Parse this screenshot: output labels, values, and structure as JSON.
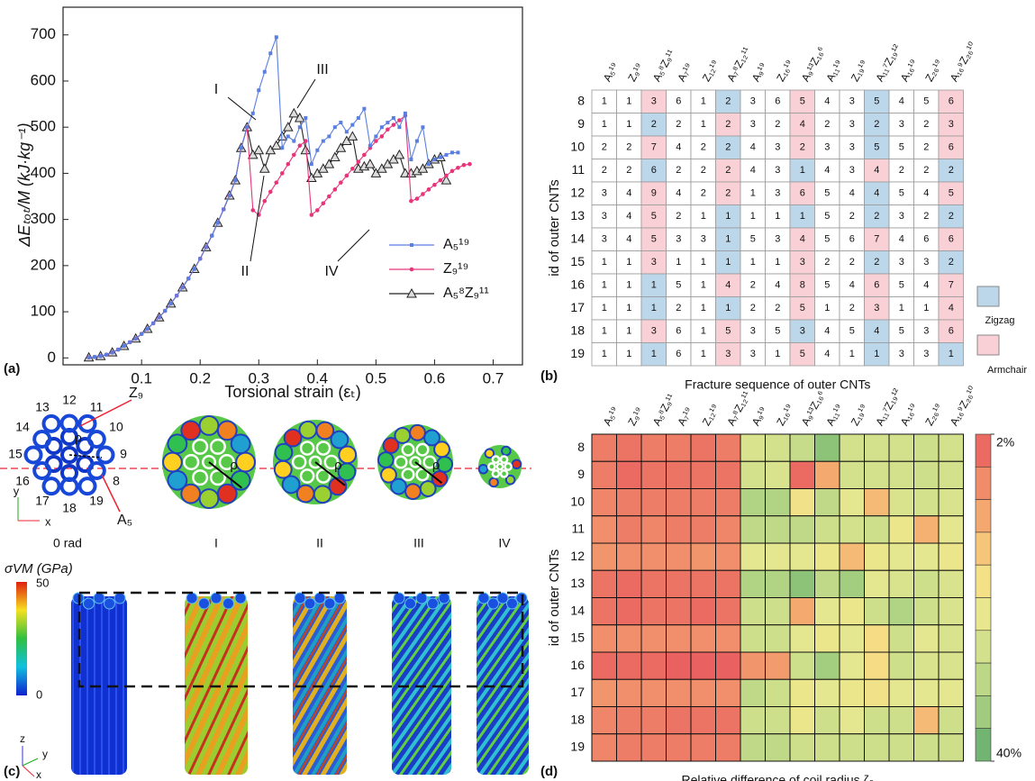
{
  "chart_data": [
    {
      "type": "line",
      "label": "(a)",
      "xlabel": "Torsional strain (εₜ)",
      "ylabel": "ΔEₜₒₜ/M (kJ·kg⁻¹)",
      "xlim": [
        -0.034,
        0.75
      ],
      "ylim": [
        -15,
        760
      ],
      "xticks": [
        0.1,
        0.2,
        0.3,
        0.4,
        0.5,
        0.6,
        0.7
      ],
      "yticks": [
        0,
        100,
        200,
        300,
        400,
        500,
        600,
        700
      ],
      "legend": "lower right",
      "annotations": [
        "I",
        "II",
        "III",
        "IV"
      ],
      "x": [
        0.01,
        0.02,
        0.03,
        0.04,
        0.05,
        0.06,
        0.07,
        0.08,
        0.09,
        0.1,
        0.11,
        0.12,
        0.13,
        0.14,
        0.15,
        0.16,
        0.17,
        0.18,
        0.19,
        0.2,
        0.21,
        0.22,
        0.23,
        0.24,
        0.25,
        0.26,
        0.27,
        0.28,
        0.29,
        0.3,
        0.31,
        0.32,
        0.33,
        0.34,
        0.35,
        0.36,
        0.37,
        0.38,
        0.39,
        0.4,
        0.41,
        0.42,
        0.43,
        0.44,
        0.45,
        0.46,
        0.47,
        0.48,
        0.49,
        0.5,
        0.51,
        0.52,
        0.53,
        0.54,
        0.55,
        0.56,
        0.57,
        0.58,
        0.59,
        0.6,
        0.61,
        0.62,
        0.63,
        0.64,
        0.65,
        0.66
      ],
      "series": [
        {
          "name": "A₅¹⁹",
          "color": "#5b7fe0",
          "marker": "square",
          "values": [
            1,
            2,
            4,
            7,
            12,
            18,
            26,
            34,
            42,
            52,
            63,
            75,
            88,
            102,
            118,
            135,
            153,
            172,
            193,
            215,
            240,
            265,
            293,
            322,
            352,
            385,
            455,
            500,
            530,
            580,
            620,
            660,
            695,
            455,
            480,
            470,
            500,
            520,
            420,
            450,
            470,
            480,
            500,
            510,
            490,
            505,
            520,
            540,
            460,
            480,
            500,
            510,
            520,
            500,
            530,
            430,
            470,
            500,
            420,
            430,
            435,
            440,
            445,
            445,
            null,
            null
          ]
        },
        {
          "name": "Z₉¹⁹",
          "color": "#e8347a",
          "marker": "circle",
          "values": [
            1,
            2,
            4,
            7,
            12,
            18,
            26,
            34,
            42,
            52,
            63,
            75,
            88,
            102,
            118,
            135,
            153,
            172,
            193,
            215,
            240,
            265,
            293,
            322,
            352,
            385,
            455,
            500,
            320,
            310,
            340,
            360,
            380,
            400,
            420,
            440,
            460,
            470,
            310,
            320,
            335,
            350,
            365,
            380,
            395,
            410,
            425,
            440,
            455,
            470,
            480,
            495,
            505,
            515,
            525,
            340,
            345,
            355,
            365,
            375,
            385,
            395,
            405,
            412,
            418,
            420
          ]
        },
        {
          "name": "A₅⁸Z₉¹¹",
          "color": "#222222",
          "marker": "triangle",
          "values": [
            1,
            2,
            4,
            7,
            12,
            18,
            26,
            34,
            42,
            52,
            63,
            75,
            88,
            102,
            118,
            135,
            153,
            172,
            193,
            215,
            240,
            265,
            293,
            322,
            352,
            385,
            455,
            500,
            440,
            450,
            410,
            450,
            460,
            480,
            500,
            530,
            520,
            450,
            390,
            400,
            410,
            420,
            435,
            455,
            470,
            480,
            410,
            415,
            420,
            400,
            410,
            420,
            430,
            440,
            400,
            400,
            405,
            410,
            420,
            430,
            435,
            385,
            null,
            null,
            null,
            null
          ]
        }
      ]
    },
    {
      "type": "table",
      "label": "(b)",
      "xlabel": "Fracture sequence of outer CNTs",
      "ylabel": "id of outer CNTs",
      "columns": [
        "A₅¹⁹",
        "Z₉¹⁹",
        "A₅⁸Z₉¹¹",
        "A₇¹⁹",
        "Z₁₂¹⁹",
        "A₇⁸Z₁₂¹¹",
        "A₉¹⁹",
        "Z₁₆¹⁹",
        "A₉¹³Z₁₆⁶",
        "A₁₁¹⁹",
        "Z₁₉¹⁹",
        "A₁₁⁷Z₁₉¹²",
        "A₁₆¹⁹",
        "Z₂₆¹⁹",
        "A₁₆⁹Z₂₆¹⁰"
      ],
      "rows": [
        8,
        9,
        10,
        11,
        12,
        13,
        14,
        15,
        16,
        17,
        18,
        19
      ],
      "legend_items": [
        {
          "name": "Zigzag",
          "color": "#bcd6ea"
        },
        {
          "name": "Armchair",
          "color": "#f9d0d5"
        }
      ],
      "values": [
        [
          1,
          1,
          3,
          6,
          1,
          2,
          3,
          6,
          5,
          4,
          3,
          5,
          4,
          5,
          6
        ],
        [
          1,
          1,
          2,
          2,
          1,
          2,
          3,
          2,
          4,
          2,
          3,
          2,
          3,
          2,
          3
        ],
        [
          2,
          2,
          7,
          4,
          2,
          2,
          4,
          3,
          2,
          3,
          3,
          5,
          5,
          2,
          6
        ],
        [
          2,
          2,
          6,
          2,
          2,
          2,
          4,
          3,
          1,
          4,
          3,
          4,
          2,
          2,
          2
        ],
        [
          3,
          4,
          9,
          4,
          2,
          2,
          1,
          3,
          6,
          5,
          4,
          4,
          5,
          4,
          5
        ],
        [
          3,
          4,
          5,
          2,
          1,
          1,
          1,
          1,
          1,
          5,
          2,
          2,
          3,
          2,
          2
        ],
        [
          3,
          4,
          5,
          3,
          3,
          1,
          5,
          3,
          4,
          5,
          6,
          7,
          4,
          6,
          6
        ],
        [
          1,
          1,
          3,
          1,
          1,
          1,
          1,
          1,
          3,
          2,
          2,
          2,
          3,
          3,
          2
        ],
        [
          1,
          1,
          1,
          5,
          1,
          4,
          2,
          4,
          8,
          5,
          4,
          6,
          5,
          4,
          7
        ],
        [
          1,
          1,
          1,
          2,
          1,
          1,
          2,
          2,
          5,
          1,
          2,
          3,
          1,
          1,
          4
        ],
        [
          1,
          1,
          3,
          6,
          1,
          5,
          3,
          5,
          3,
          4,
          5,
          4,
          5,
          3,
          6
        ],
        [
          1,
          1,
          1,
          6,
          1,
          3,
          3,
          1,
          5,
          4,
          1,
          1,
          3,
          3,
          1
        ]
      ],
      "cell_types": [
        [
          null,
          null,
          1,
          null,
          null,
          0,
          null,
          null,
          1,
          null,
          null,
          0,
          null,
          null,
          1
        ],
        [
          null,
          null,
          0,
          null,
          null,
          1,
          null,
          null,
          1,
          null,
          null,
          0,
          null,
          null,
          1
        ],
        [
          null,
          null,
          1,
          null,
          null,
          0,
          null,
          null,
          1,
          null,
          null,
          0,
          null,
          null,
          1
        ],
        [
          null,
          null,
          0,
          null,
          null,
          1,
          null,
          null,
          0,
          null,
          null,
          1,
          null,
          null,
          0
        ],
        [
          null,
          null,
          1,
          null,
          null,
          1,
          null,
          null,
          1,
          null,
          null,
          0,
          null,
          null,
          1
        ],
        [
          null,
          null,
          1,
          null,
          null,
          0,
          null,
          null,
          0,
          null,
          null,
          0,
          null,
          null,
          0
        ],
        [
          null,
          null,
          1,
          null,
          null,
          0,
          null,
          null,
          1,
          null,
          null,
          1,
          null,
          null,
          1
        ],
        [
          null,
          null,
          1,
          null,
          null,
          0,
          null,
          null,
          1,
          null,
          null,
          0,
          null,
          null,
          0
        ],
        [
          null,
          null,
          0,
          null,
          null,
          1,
          null,
          null,
          1,
          null,
          null,
          1,
          null,
          null,
          1
        ],
        [
          null,
          null,
          0,
          null,
          null,
          0,
          null,
          null,
          1,
          null,
          null,
          1,
          null,
          null,
          1
        ],
        [
          null,
          null,
          1,
          null,
          null,
          1,
          null,
          null,
          0,
          null,
          null,
          0,
          null,
          null,
          1
        ],
        [
          null,
          null,
          0,
          null,
          null,
          1,
          null,
          null,
          1,
          null,
          null,
          0,
          null,
          null,
          0
        ]
      ]
    },
    {
      "type": "heatmap",
      "label": "(d)",
      "xlabel": "Relative difference of coil radius ζᵨ",
      "ylabel": "id of outer CNTs",
      "columns": [
        "A₅¹⁹",
        "Z₉¹⁹",
        "A₅⁸Z₉¹¹",
        "A₇¹⁹",
        "Z₁₂¹⁹",
        "A₇⁸Z₁₂¹¹",
        "A₉¹⁹",
        "Z₁₆¹⁹",
        "A₉¹³Z₁₆⁶",
        "A₁₁¹⁹",
        "Z₁₉¹⁹",
        "A₁₁⁷Z₁₉¹²",
        "A₁₆¹⁹",
        "Z₂₆¹⁹",
        "A₁₆⁹Z₂₆¹⁰"
      ],
      "rows": [
        8,
        9,
        10,
        11,
        12,
        13,
        14,
        15,
        16,
        17,
        18,
        19
      ],
      "zlim": [
        2,
        40
      ],
      "colorbar_ticks": [
        {
          "value": 2,
          "label": "2%"
        },
        {
          "value": 40,
          "label": "40%"
        }
      ],
      "colormap": [
        "#e8585e",
        "#f08a6a",
        "#f5b070",
        "#f6df86",
        "#e6e88f",
        "#c6dc8a",
        "#9fcb7e",
        "#5aa86a"
      ],
      "values": [
        [
          6,
          5,
          6,
          6,
          5,
          6,
          26,
          27,
          29,
          36,
          27,
          27,
          27,
          28,
          27
        ],
        [
          6,
          4,
          5,
          5,
          5,
          5,
          27,
          26,
          4,
          12,
          27,
          27,
          27,
          28,
          27
        ],
        [
          7,
          6,
          6,
          6,
          6,
          6,
          32,
          32,
          20,
          30,
          24,
          14,
          26,
          27,
          26
        ],
        [
          8,
          6,
          7,
          6,
          6,
          7,
          30,
          30,
          30,
          28,
          27,
          28,
          22,
          13,
          24
        ],
        [
          9,
          8,
          8,
          8,
          9,
          8,
          24,
          24,
          24,
          22,
          14,
          22,
          24,
          24,
          22
        ],
        [
          5,
          4,
          5,
          5,
          5,
          5,
          32,
          32,
          36,
          30,
          34,
          24,
          26,
          28,
          26
        ],
        [
          5,
          4,
          5,
          5,
          4,
          5,
          28,
          28,
          12,
          24,
          22,
          28,
          32,
          28,
          26
        ],
        [
          8,
          8,
          8,
          8,
          8,
          8,
          28,
          28,
          24,
          22,
          24,
          18,
          28,
          24,
          26
        ],
        [
          4,
          4,
          4,
          3,
          3,
          3,
          9,
          10,
          28,
          34,
          24,
          18,
          28,
          26,
          26
        ],
        [
          9,
          8,
          8,
          8,
          8,
          8,
          30,
          28,
          22,
          24,
          22,
          20,
          24,
          24,
          24
        ],
        [
          7,
          6,
          6,
          5,
          5,
          5,
          28,
          28,
          22,
          28,
          24,
          28,
          28,
          14,
          28
        ],
        [
          7,
          6,
          6,
          6,
          6,
          6,
          30,
          30,
          28,
          28,
          28,
          28,
          28,
          28,
          28
        ]
      ]
    }
  ],
  "panel_c": {
    "label": "(c)",
    "ids": [
      9,
      10,
      11,
      12,
      13,
      14,
      15,
      16,
      17,
      18,
      19,
      8
    ],
    "z_label": "Z₉",
    "a_label": "A₅",
    "rho": "ρ",
    "stages": [
      "0 rad",
      "I",
      "II",
      "III",
      "IV"
    ],
    "colorbar_title": "σVM (GPa)",
    "colorbar_max": 50,
    "colorbar_min": 0,
    "axes": [
      "x",
      "y",
      "z"
    ]
  }
}
